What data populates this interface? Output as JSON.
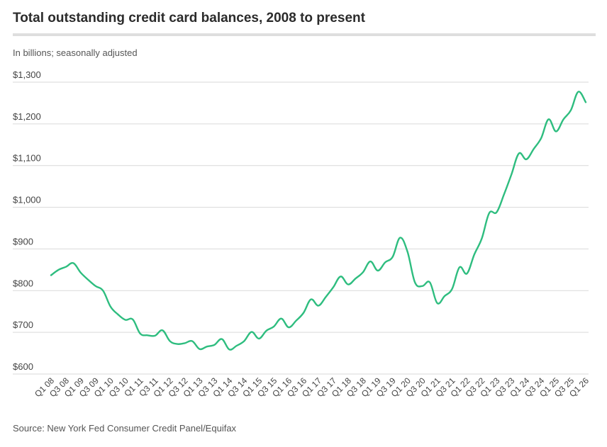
{
  "header": {
    "title": "Total outstanding credit card balances, 2008 to present",
    "subtitle": "In billions; seasonally adjusted"
  },
  "footer": {
    "source": "Source: New York Fed Consumer Credit Panel/Equifax"
  },
  "colors": {
    "line": "#2ebd7f",
    "grid": "#d9d9d9",
    "rule": "#dedede"
  },
  "chart_data": {
    "type": "line",
    "title": "Total outstanding credit card balances, 2008 to present",
    "subtitle": "In billions; seasonally adjusted",
    "xlabel": "",
    "ylabel": "",
    "ylim": [
      600,
      1300
    ],
    "yticks": [
      600,
      700,
      800,
      900,
      1000,
      1100,
      1200,
      1300
    ],
    "ytick_labels": [
      "$600",
      "$700",
      "$800",
      "$900",
      "$1,000",
      "$1,100",
      "$1,200",
      "$1,300"
    ],
    "grid": true,
    "legend": "none",
    "xtick_labels": [
      "Q1 08",
      "Q3 08",
      "Q1 09",
      "Q3 09",
      "Q1 10",
      "Q3 10",
      "Q1 11",
      "Q3 11",
      "Q1 12",
      "Q3 12",
      "Q1 13",
      "Q3 13",
      "Q1 14",
      "Q3 14",
      "Q1 15",
      "Q3 15",
      "Q1 16",
      "Q3 16",
      "Q1 17",
      "Q3 17",
      "Q1 18",
      "Q3 18",
      "Q1 19",
      "Q3 19",
      "Q1 20",
      "Q3 20",
      "Q1 21",
      "Q3 21",
      "Q1 22",
      "Q3 22",
      "Q1 23",
      "Q3 23",
      "Q1 24",
      "Q3 24",
      "Q1 25",
      "Q3 25",
      "Q1 26"
    ],
    "x": [
      "Q1 08",
      "Q2 08",
      "Q3 08",
      "Q4 08",
      "Q1 09",
      "Q2 09",
      "Q3 09",
      "Q4 09",
      "Q1 10",
      "Q2 10",
      "Q3 10",
      "Q4 10",
      "Q1 11",
      "Q2 11",
      "Q3 11",
      "Q4 11",
      "Q1 12",
      "Q2 12",
      "Q3 12",
      "Q4 12",
      "Q1 13",
      "Q2 13",
      "Q3 13",
      "Q4 13",
      "Q1 14",
      "Q2 14",
      "Q3 14",
      "Q4 14",
      "Q1 15",
      "Q2 15",
      "Q3 15",
      "Q4 15",
      "Q1 16",
      "Q2 16",
      "Q3 16",
      "Q4 16",
      "Q1 17",
      "Q2 17",
      "Q3 17",
      "Q4 17",
      "Q1 18",
      "Q2 18",
      "Q3 18",
      "Q4 18",
      "Q1 19",
      "Q2 19",
      "Q3 19",
      "Q4 19",
      "Q1 20",
      "Q2 20",
      "Q3 20",
      "Q4 20",
      "Q1 21",
      "Q2 21",
      "Q3 21",
      "Q4 21",
      "Q1 22",
      "Q2 22",
      "Q3 22",
      "Q4 22",
      "Q1 23",
      "Q2 23",
      "Q3 23",
      "Q4 23",
      "Q1 24",
      "Q2 24",
      "Q3 24",
      "Q4 24",
      "Q1 25",
      "Q2 25",
      "Q3 25",
      "Q4 25",
      "Q1 26"
    ],
    "series": [
      {
        "values": [
          837,
          850,
          857,
          866,
          843,
          826,
          811,
          800,
          762,
          743,
          730,
          731,
          697,
          693,
          692,
          705,
          679,
          672,
          674,
          679,
          660,
          666,
          670,
          684,
          659,
          668,
          679,
          701,
          685,
          704,
          714,
          733,
          712,
          728,
          747,
          779,
          764,
          785,
          808,
          834,
          815,
          829,
          844,
          870,
          848,
          868,
          881,
          927,
          893,
          820,
          811,
          820,
          770,
          787,
          804,
          856,
          841,
          887,
          925,
          986,
          988,
          1031,
          1079,
          1129,
          1115,
          1140,
          1166,
          1211,
          1182,
          1211,
          1233,
          1277,
          1252
        ]
      }
    ]
  }
}
